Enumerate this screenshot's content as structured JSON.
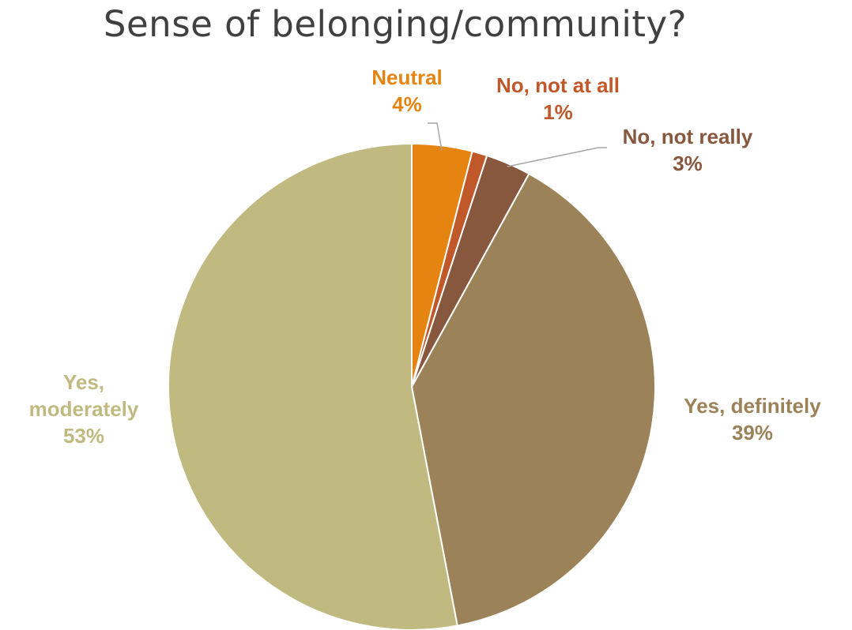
{
  "chart_data": {
    "type": "pie",
    "title": "Sense of belonging/community?",
    "categories": [
      "Neutral",
      "No, not at all",
      "No, not really",
      "Yes, definitely",
      "Yes, moderately"
    ],
    "values": [
      4,
      1,
      3,
      39,
      53
    ],
    "value_labels": [
      "4%",
      "1%",
      "3%",
      "39%",
      "53%"
    ],
    "label_lines": [
      [
        "Neutral"
      ],
      [
        "No, not at all"
      ],
      [
        "No, not really"
      ],
      [
        "Yes, definitely"
      ],
      [
        "Yes,",
        "moderately"
      ]
    ],
    "start_angle_deg": 0,
    "direction": "clockwise",
    "legend": "none",
    "colors": [
      "#E58410",
      "#C0582A",
      "#87583E",
      "#9C8258",
      "#C1BA80"
    ]
  }
}
